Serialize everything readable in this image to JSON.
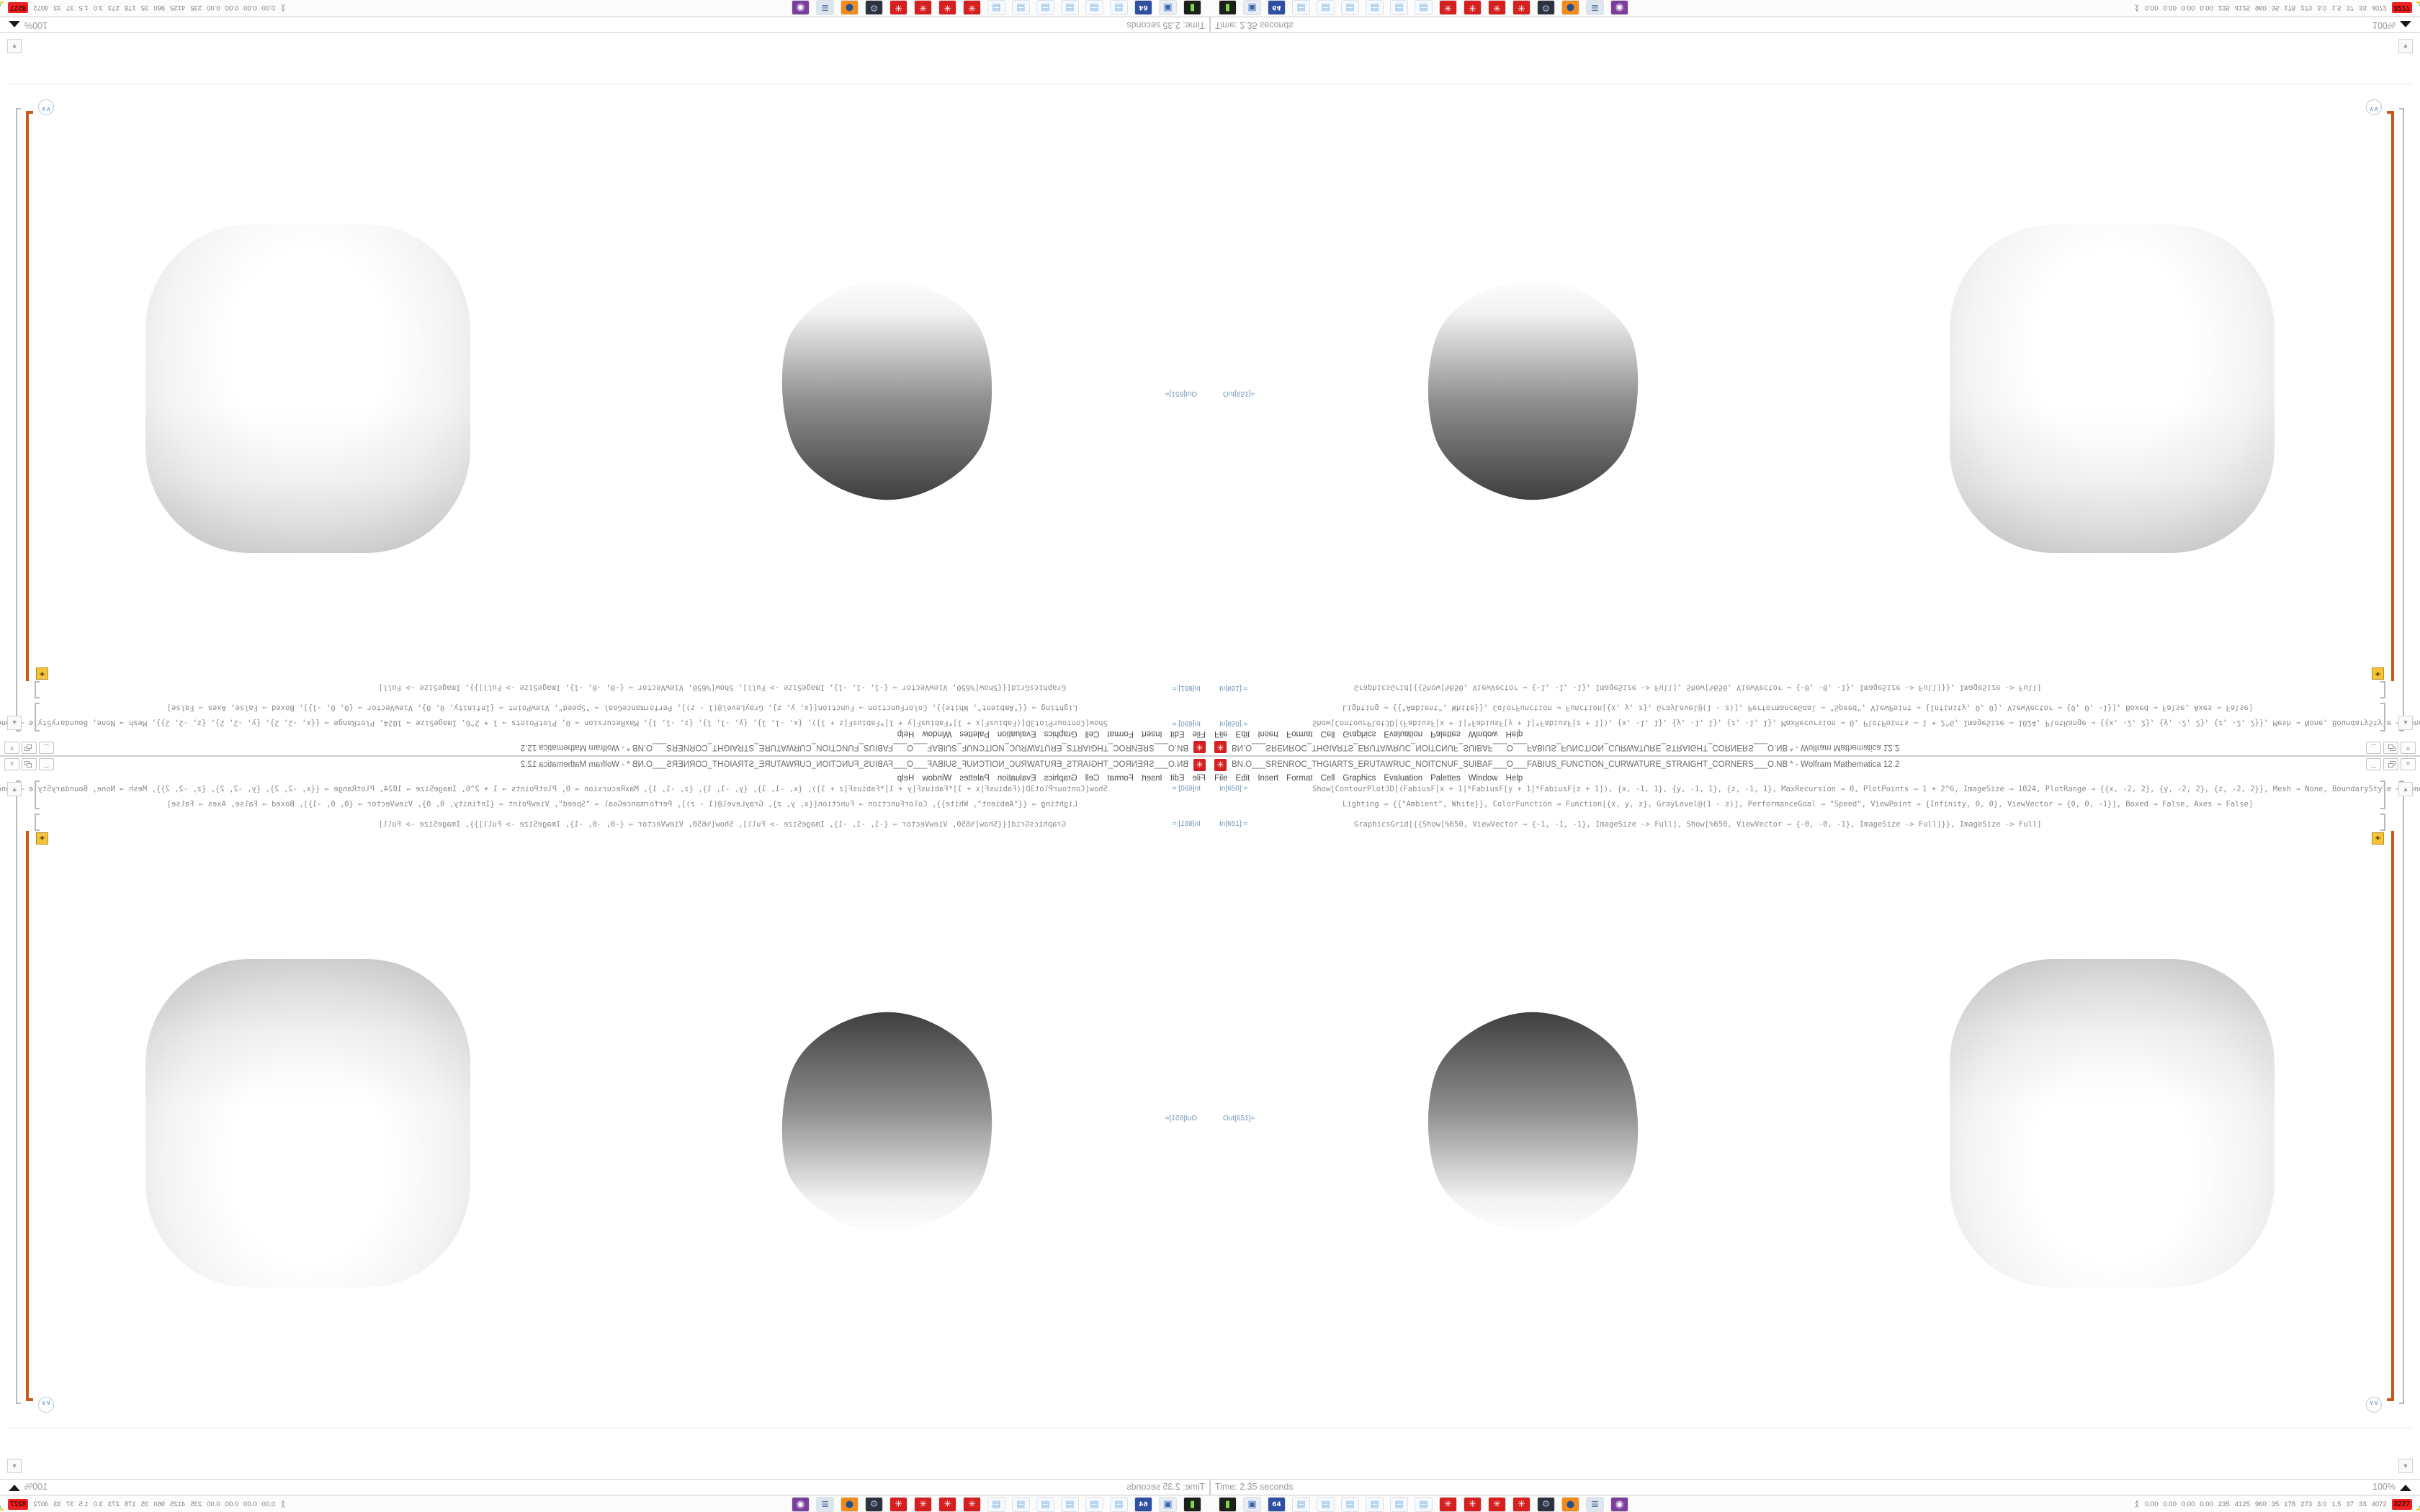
{
  "window": {
    "title": "BN.O___SRENROC_THGIARTS_ERUTAWRUC_NOITCNUF_SUIBAF___O___FABIUS_FUNCTION_CURWATURE_STRAIGHT_CORNERS___O.NB * - Wolfram Mathematica 12.2",
    "app_icon_glyph": "✳",
    "controls": {
      "minimize": "_",
      "close": "×"
    },
    "menu": [
      "File",
      "Edit",
      "Insert",
      "Format",
      "Cell",
      "Graphics",
      "Evaluation",
      "Palettes",
      "Window",
      "Help"
    ],
    "cells": {
      "in650": {
        "label": "In[650]:=",
        "line1": "Show[ContourPlot3D[(FabiusF[x + 1]*FabiusF[y + 1]*FabiusF[z + 1]), {x, -1, 1}, {y, -1, 1}, {z, -1, 1}, MaxRecursion → 0, PlotPoints → 1 + 2^6, ImageSize → 1024, PlotRange → {{x, -2, 2}, {y, -2, 2}, {z, -2, 2}}, Mesh → None, BoundaryStyle → None,",
        "line2": "Lighting → {{\"Ambient\", White}}, ColorFunction → Function[{x, y, z}, GrayLevel@(1 - z)], PerformanceGoal → \"Speed\", ViewPoint → {Infinity, 0, 0}, ViewVector → {0, 0, -1}], Boxed → False, Axes → False]"
      },
      "in651": {
        "label": "In[651]:=",
        "code": "GraphicsGrid[{{Show[%650, ViewVector → {-1, -1, -1}, ImageSize -> Full], Show[%650, ViewVector → {-0, -0, -1}, ImageSize -> Full]}}, ImageSize -> Full]"
      },
      "out651": {
        "label": "Out[651]="
      },
      "group_plus_badge": "+",
      "chevrons": "∨∨",
      "scroll_up": "▲",
      "scroll_down": "▼"
    },
    "status": {
      "time": "Time: 2.35 seconds",
      "zoom": "100%"
    }
  },
  "taskbar": {
    "icons": [
      {
        "name": "power-drive-icon",
        "glyph": "▮",
        "bg": "#1D1F1A",
        "fg": "#7CE04A"
      },
      {
        "name": "computer-icon",
        "glyph": "▣",
        "bg": "#E8EEF8",
        "fg": "#3A66B0"
      },
      {
        "name": "floppy-64-icon",
        "glyph": "64",
        "bg": "#2E4FA3",
        "fg": "#FFFFFF",
        "small": true
      },
      {
        "name": "notepad-icon",
        "glyph": "▤",
        "bg": "#F4FAFF",
        "fg": "#7FB2D9"
      },
      {
        "name": "notepad-icon",
        "glyph": "▤",
        "bg": "#F4FAFF",
        "fg": "#7FB2D9"
      },
      {
        "name": "notepad-icon",
        "glyph": "▤",
        "bg": "#F4FAFF",
        "fg": "#7FB2D9"
      },
      {
        "name": "notepad-icon",
        "glyph": "▤",
        "bg": "#F4FAFF",
        "fg": "#7FB2D9"
      },
      {
        "name": "notepad-icon",
        "glyph": "▤",
        "bg": "#F4FAFF",
        "fg": "#7FB2D9"
      },
      {
        "name": "notepad-icon",
        "glyph": "▤",
        "bg": "#F4FAFF",
        "fg": "#7FB2D9"
      },
      {
        "name": "mathematica-icon",
        "glyph": "✳",
        "bg": "#D61F1F",
        "fg": "#FFFFFF"
      },
      {
        "name": "mathematica-icon",
        "glyph": "✳",
        "bg": "#D61F1F",
        "fg": "#FFFFFF"
      },
      {
        "name": "mathematica-icon",
        "glyph": "✳",
        "bg": "#D61F1F",
        "fg": "#FFFFFF"
      },
      {
        "name": "mathematica-icon",
        "glyph": "✳",
        "bg": "#D61F1F",
        "fg": "#FFFFFF"
      },
      {
        "name": "system-monitor-icon",
        "glyph": "⚙",
        "bg": "#2B3340",
        "fg": "#9FB6CC"
      },
      {
        "name": "firefox-icon",
        "glyph": "●",
        "bg": "#F08C1B",
        "fg": "#274E8D"
      },
      {
        "name": "script-icon",
        "glyph": "≣",
        "bg": "#DCE6F0",
        "fg": "#56729A"
      },
      {
        "name": "user-icon",
        "glyph": "◉",
        "bg": "#7A3E9D",
        "fg": "#FFFFFF"
      }
    ],
    "sysmon": {
      "expander": "∧",
      "values": [
        "0.00",
        "0.00",
        "0.00",
        "0.00",
        "235",
        "4125",
        "960",
        "35",
        "178",
        "273",
        "3.0",
        "1.5",
        "37",
        "33",
        "4072"
      ],
      "alert": "8227",
      "hist_heights": [
        9,
        15,
        7,
        19,
        11,
        22,
        13,
        16,
        6
      ]
    }
  },
  "colors": {
    "accent_orange": "#C85A19",
    "label_blue": "#6F94BD",
    "spikey_red": "#D61F1F",
    "badge_red": "#EE2222",
    "graph_purple": "#5B2D8E",
    "graph_green": "#3DBB3D",
    "graph_yellow": "#E8D44D",
    "graph_brown": "#8B5A2B"
  }
}
